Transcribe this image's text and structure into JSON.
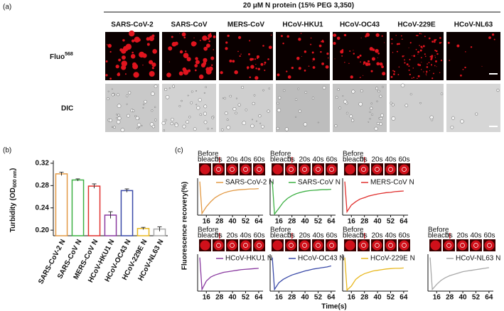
{
  "panel_a": {
    "label": "(a)",
    "title": "20 μM N protein (15% PEG 3,350)",
    "columns": [
      "SARS-CoV-2",
      "SARS-CoV",
      "MERS-CoV",
      "HCoV-HKU1",
      "HCoV-OC43",
      "HCoV-229E",
      "HCoV-NL63"
    ],
    "row_fluo": "Fluo",
    "row_fluo_sup": "568",
    "row_dic": "DIC"
  },
  "panel_b": {
    "label": "(b)"
  },
  "panel_c": {
    "label": "(c)",
    "ylabel": "Fluorescence  recovery(%)",
    "xlabel": "Time(s)",
    "before": [
      "Before",
      "bleach"
    ],
    "frames": [
      "0s",
      "20s",
      "40s",
      "60s"
    ]
  },
  "chart_data": [
    {
      "type": "bar",
      "ylabel": [
        "Turbidity (OD",
        "600 nm",
        ")"
      ],
      "categories": [
        "SARS-CoV-2 N",
        "SARS-CoV N",
        "MERS-CoV N",
        "HCoV-HKU1 N",
        "HCoV-OC43 N",
        "HCoV-229E N",
        "HCoV-NL63 N"
      ],
      "values": [
        0.301,
        0.29,
        0.279,
        0.227,
        0.271,
        0.203,
        0.202
      ],
      "errors": [
        0.003,
        0.002,
        0.004,
        0.006,
        0.003,
        0.002,
        0.004
      ],
      "colors": [
        "#e39a45",
        "#3cb043",
        "#e0302e",
        "#8a3aa0",
        "#3a4aa8",
        "#e8b820",
        "#a9a9a9"
      ],
      "ylim": [
        0.19,
        0.325
      ],
      "yticks": [
        {
          "value": 0.2,
          "label": "0.20"
        },
        {
          "value": 0.24,
          "label": "0.24"
        },
        {
          "value": 0.28,
          "label": "0.28"
        },
        {
          "value": 0.32,
          "label": "0.32"
        }
      ]
    },
    {
      "type": "line",
      "x": [
        10,
        12,
        16,
        20,
        24,
        28,
        32,
        36,
        40,
        44,
        48,
        52,
        56,
        60,
        64
      ],
      "xlim": [
        8,
        68
      ],
      "ylim": [
        0,
        110
      ],
      "xticks": [
        16,
        28,
        40,
        52,
        64
      ],
      "series": [
        {
          "name": "SARS-CoV-2 N",
          "color": "#e39a45",
          "values": [
            100,
            5,
            25,
            40,
            52,
            60,
            66,
            70,
            73,
            75,
            76,
            77,
            78,
            78,
            79
          ]
        }
      ]
    },
    {
      "type": "line",
      "x": [
        10,
        12,
        16,
        20,
        24,
        28,
        32,
        36,
        40,
        44,
        48,
        52,
        56,
        60,
        64
      ],
      "xlim": [
        8,
        68
      ],
      "ylim": [
        0,
        110
      ],
      "xticks": [
        16,
        28,
        40,
        52,
        64
      ],
      "series": [
        {
          "name": "SARS-CoV N",
          "color": "#3cb043",
          "values": [
            100,
            3,
            20,
            38,
            50,
            58,
            64,
            68,
            71,
            73,
            74,
            75,
            76,
            76,
            77
          ]
        }
      ]
    },
    {
      "type": "line",
      "x": [
        10,
        12,
        16,
        20,
        24,
        28,
        32,
        36,
        40,
        44,
        48,
        52,
        56,
        60,
        64
      ],
      "xlim": [
        8,
        68
      ],
      "ylim": [
        0,
        110
      ],
      "xticks": [
        16,
        28,
        40,
        52,
        64
      ],
      "series": [
        {
          "name": "MERS-CoV N",
          "color": "#e0302e",
          "values": [
            100,
            10,
            30,
            40,
            48,
            52,
            57,
            60,
            63,
            65,
            67,
            68,
            70,
            71,
            72
          ]
        }
      ]
    },
    {
      "type": "line",
      "x": [
        10,
        12,
        16,
        20,
        24,
        28,
        32,
        36,
        40,
        44,
        48,
        52,
        56,
        60,
        64
      ],
      "xlim": [
        8,
        68
      ],
      "ylim": [
        0,
        110
      ],
      "xticks": [
        16,
        28,
        40,
        52,
        64
      ],
      "series": [
        {
          "name": "HCoV-HKU1 N",
          "color": "#8a3aa0",
          "values": [
            100,
            5,
            30,
            42,
            48,
            52,
            56,
            58,
            60,
            62,
            64,
            65,
            66,
            67,
            68
          ]
        }
      ]
    },
    {
      "type": "line",
      "x": [
        10,
        12,
        16,
        20,
        24,
        28,
        32,
        36,
        40,
        44,
        48,
        52,
        56,
        60,
        64
      ],
      "xlim": [
        8,
        68
      ],
      "ylim": [
        0,
        110
      ],
      "xticks": [
        16,
        28,
        40,
        52,
        64
      ],
      "series": [
        {
          "name": "HCoV-OC43 N",
          "color": "#3a4aa8",
          "values": [
            100,
            5,
            25,
            35,
            42,
            48,
            52,
            56,
            60,
            63,
            66,
            68,
            70,
            72,
            75
          ]
        }
      ]
    },
    {
      "type": "line",
      "x": [
        10,
        12,
        16,
        20,
        24,
        28,
        32,
        36,
        40,
        44,
        48,
        52,
        56,
        60,
        64
      ],
      "xlim": [
        8,
        68
      ],
      "ylim": [
        0,
        110
      ],
      "xticks": [
        16,
        28,
        40,
        52,
        64
      ],
      "series": [
        {
          "name": "HCoV-229E N",
          "color": "#e8b820",
          "values": [
            100,
            3,
            15,
            35,
            45,
            52,
            56,
            60,
            62,
            64,
            66,
            67,
            68,
            68,
            69
          ]
        }
      ]
    },
    {
      "type": "line",
      "x": [
        10,
        12,
        16,
        20,
        24,
        28,
        32,
        36,
        40,
        44,
        48,
        52,
        56,
        60,
        64
      ],
      "xlim": [
        8,
        68
      ],
      "ylim": [
        0,
        110
      ],
      "xticks": [
        16,
        28,
        40,
        52,
        64
      ],
      "series": [
        {
          "name": "HCoV-NL63 N",
          "color": "#a9a9a9",
          "values": [
            100,
            5,
            20,
            32,
            40,
            46,
            50,
            54,
            58,
            60,
            62,
            64,
            66,
            68,
            70
          ]
        }
      ]
    }
  ]
}
